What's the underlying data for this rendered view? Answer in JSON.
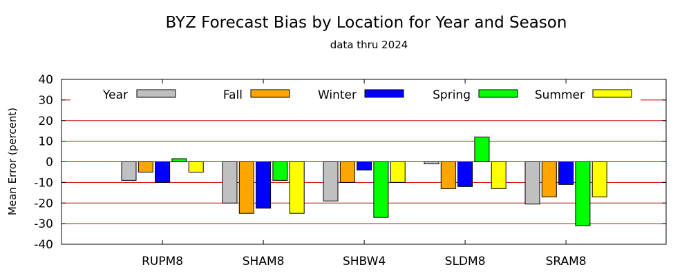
{
  "chart_data": {
    "type": "bar",
    "title": "BYZ Forecast Bias by Location for Year and Season",
    "subtitle": "data thru 2024",
    "xlabel": "",
    "ylabel": "Mean Error (percent)",
    "ylim": [
      -40,
      40
    ],
    "yticks": [
      -40,
      -30,
      -20,
      -10,
      0,
      10,
      20,
      30,
      40
    ],
    "grid": "horizontal",
    "legend": "top, inside",
    "categories": [
      "RUPM8",
      "SHAM8",
      "SHBW4",
      "SLDM8",
      "SRAM8"
    ],
    "series": [
      {
        "name": "Year",
        "color": "#c0c0c0",
        "values": [
          -9,
          -20,
          -19,
          -1,
          -20.5
        ]
      },
      {
        "name": "Fall",
        "color": "#ffa500",
        "values": [
          -5,
          -25,
          -10,
          -13,
          -17
        ]
      },
      {
        "name": "Winter",
        "color": "#0000ff",
        "values": [
          -10,
          -22.5,
          -4,
          -12,
          -11
        ]
      },
      {
        "name": "Spring",
        "color": "#00ff00",
        "values": [
          1.5,
          -9,
          -27,
          12,
          -31
        ]
      },
      {
        "name": "Summer",
        "color": "#ffff00",
        "values": [
          -5,
          -25,
          -10,
          -13,
          -17
        ]
      }
    ]
  }
}
